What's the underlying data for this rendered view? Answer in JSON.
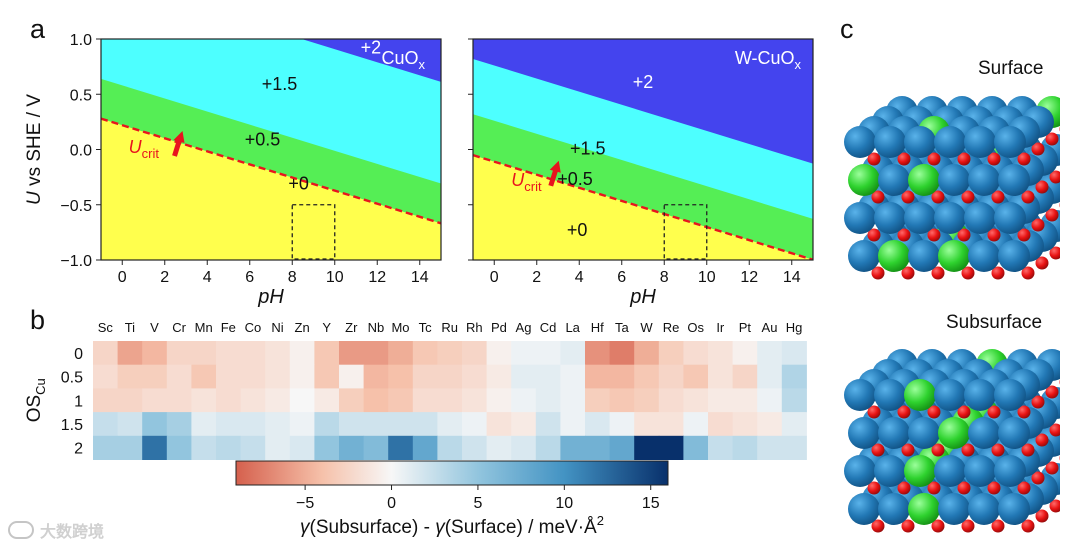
{
  "panel_labels": {
    "a": "a",
    "b": "b",
    "c": "c"
  },
  "chart_data": [
    {
      "type": "area",
      "name": "Pourbaix-type stability diagram",
      "title": "CuO",
      "title_sub": "x",
      "xlabel": "pH",
      "ylabel_italic": "U",
      "ylabel_rest": " vs SHE / V",
      "xlim": [
        -1,
        15
      ],
      "ylim": [
        -1.0,
        1.0
      ],
      "xticks": [
        "0",
        "2",
        "4",
        "6",
        "8",
        "10",
        "12",
        "14"
      ],
      "yticks": [
        "1.0",
        "0.5",
        "0.0",
        "−0.5",
        "−1.0"
      ],
      "boundaries": [
        {
          "name": "0 / +0.5",
          "intercept": 0.22,
          "slope": -0.0592
        },
        {
          "name": "+0.5 / +1.5",
          "intercept": 0.58,
          "slope": -0.0592
        },
        {
          "name": "+1.5 / +2",
          "intercept": 1.5,
          "slope": -0.0592
        }
      ],
      "regions": [
        {
          "label": "+0",
          "color": "#ffff4d"
        },
        {
          "label": "+0.5",
          "color": "#55ee55"
        },
        {
          "label": "+1.5",
          "color": "#4dffff"
        },
        {
          "label": "+2",
          "color": "#4444ee"
        }
      ],
      "ucrit": {
        "main": "U",
        "sub": "crit"
      },
      "box": {
        "pH": [
          8,
          10
        ],
        "U": [
          -1.0,
          -0.5
        ]
      }
    },
    {
      "type": "area",
      "name": "Pourbaix-type stability diagram",
      "title": "W-CuO",
      "title_sub": "x",
      "xlabel": "pH",
      "xlim": [
        -1,
        15
      ],
      "ylim": [
        -1.0,
        1.0
      ],
      "xticks": [
        "0",
        "2",
        "4",
        "6",
        "8",
        "10",
        "12",
        "14"
      ],
      "boundaries": [
        {
          "name": "0 / +0.5",
          "intercept": -0.11,
          "slope": -0.0592
        },
        {
          "name": "+0.5 / +1.5",
          "intercept": 0.26,
          "slope": -0.0592
        },
        {
          "name": "+1.5 / +2",
          "intercept": 0.76,
          "slope": -0.0592
        }
      ],
      "regions": [
        {
          "label": "+0",
          "color": "#ffff4d"
        },
        {
          "label": "+0.5",
          "color": "#55ee55"
        },
        {
          "label": "+1.5",
          "color": "#4dffff"
        },
        {
          "label": "+2",
          "color": "#4444ee"
        }
      ],
      "ucrit": {
        "main": "U",
        "sub": "crit"
      },
      "box": {
        "pH": [
          8,
          10
        ],
        "U": [
          -1.0,
          -0.5
        ]
      }
    },
    {
      "type": "heatmap",
      "name": "Segregation energy heatmap",
      "columns": [
        "Sc",
        "Ti",
        "V",
        "Cr",
        "Mn",
        "Fe",
        "Co",
        "Ni",
        "Zn",
        "Y",
        "Zr",
        "Nb",
        "Mo",
        "Tc",
        "Ru",
        "Rh",
        "Pd",
        "Ag",
        "Cd",
        "La",
        "Hf",
        "Ta",
        "W",
        "Re",
        "Os",
        "Ir",
        "Pt",
        "Au",
        "Hg"
      ],
      "rows": [
        "0",
        "0.5",
        "1",
        "1.5",
        "2"
      ],
      "ylabel_main": "OS",
      "ylabel_sub": "Cu",
      "values": [
        [
          -2.5,
          -5.5,
          -4.5,
          -2.5,
          -2.5,
          -2,
          -2,
          -1.5,
          -0.5,
          -3.5,
          -6,
          -6,
          -5,
          -3.5,
          -3,
          -2.5,
          -0.5,
          0.5,
          0.5,
          1,
          -6.5,
          -7.5,
          -5,
          -3,
          -2,
          -1.5,
          -0.5,
          1,
          1.5
        ],
        [
          -2,
          -3,
          -3,
          -2,
          -3.5,
          -2,
          -2,
          -1.5,
          -0.5,
          -3.5,
          -0.5,
          -4.5,
          -4,
          -2.5,
          -2.5,
          -2,
          -1,
          1,
          1,
          0.5,
          -4.5,
          -4.5,
          -3.5,
          -2.5,
          -3.5,
          -1.5,
          -2.5,
          1,
          3.5
        ],
        [
          -2.5,
          -2.5,
          -2,
          -2,
          -1.5,
          -2,
          -1.5,
          -1,
          0,
          -1,
          -3,
          -4,
          -3.5,
          -2,
          -2,
          -1.5,
          -0.5,
          0.5,
          1,
          0.5,
          -3,
          -3.5,
          -3,
          -2,
          -1.5,
          -1,
          -1,
          0.5,
          3
        ],
        [
          2.5,
          2,
          5,
          4,
          1,
          1.5,
          1.5,
          1,
          0.5,
          3,
          2,
          2,
          2,
          2,
          1,
          0.5,
          -1.5,
          -1,
          2,
          0.5,
          1.5,
          0.5,
          -1.5,
          -1.5,
          0.5,
          -2,
          -1.5,
          -1,
          1
        ],
        [
          4,
          4,
          12,
          5,
          2.5,
          3,
          2.5,
          1,
          1.5,
          5,
          7,
          6,
          12,
          8,
          3,
          2,
          1,
          1.5,
          3,
          7,
          7,
          8,
          16,
          16,
          6,
          2.5,
          3,
          2,
          2
        ]
      ],
      "vmin": -9,
      "vmax": 16,
      "colorbar": {
        "ticks": [
          "−5",
          "0",
          "5",
          "10",
          "15"
        ],
        "tick_values": [
          -5,
          0,
          5,
          10,
          15
        ],
        "label_gamma1": "γ",
        "label_part1": "(Subsurface) - ",
        "label_gamma2": "γ",
        "label_part2": "(Surface) / meV·Å",
        "label_sup": "2"
      }
    }
  ],
  "structures": {
    "surface_label": "Surface",
    "subsurface_label": "Subsurface"
  },
  "watermark": {
    "text": "大数跨境"
  },
  "colors": {
    "ucrit": "#e8141e",
    "dashed": "#e8141e",
    "atom_blue": "#2278b5",
    "atom_green": "#2ed22e",
    "atom_red": "#e81212"
  }
}
